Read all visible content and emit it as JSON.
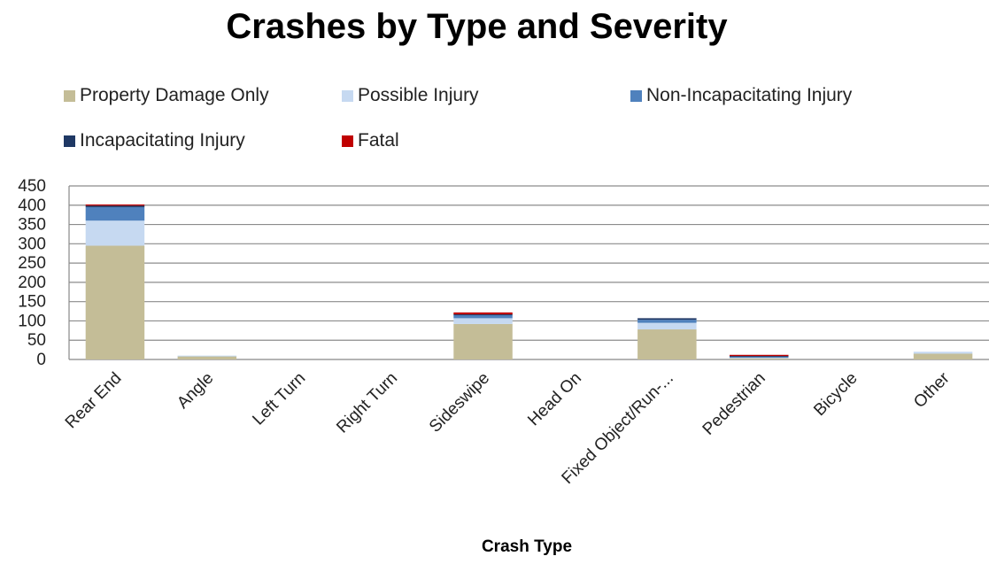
{
  "chart_data": {
    "type": "bar",
    "stacked": true,
    "title": "Crashes by Type and Severity",
    "xlabel": "Crash Type",
    "ylabel": "",
    "ylim": [
      0,
      450
    ],
    "yticks": [
      0,
      50,
      100,
      150,
      200,
      250,
      300,
      350,
      400,
      450
    ],
    "grid": true,
    "legend_position": "top",
    "categories": [
      "Rear End",
      "Angle",
      "Left Turn",
      "Right Turn",
      "Sideswipe",
      "Head On",
      "Fixed Object/Run-...",
      "Pedestrian",
      "Bicycle",
      "Other"
    ],
    "series": [
      {
        "name": "Property Damage Only",
        "color": "#c4bd97",
        "values": [
          295,
          8,
          0,
          0,
          92,
          0,
          78,
          4,
          0,
          15
        ]
      },
      {
        "name": "Possible Injury",
        "color": "#c6d9f1",
        "values": [
          65,
          2,
          0,
          0,
          15,
          0,
          17,
          1,
          0,
          5
        ]
      },
      {
        "name": "Non-Incapacitating Injury",
        "color": "#4f81bd",
        "values": [
          35,
          0,
          0,
          0,
          8,
          0,
          8,
          2,
          0,
          0
        ]
      },
      {
        "name": "Incapacitating Injury",
        "color": "#1f3864",
        "values": [
          4,
          0,
          0,
          0,
          2,
          0,
          4,
          2,
          0,
          0
        ]
      },
      {
        "name": "Fatal",
        "color": "#c00000",
        "values": [
          3,
          0,
          0,
          0,
          5,
          0,
          0,
          3,
          0,
          0
        ]
      }
    ]
  }
}
